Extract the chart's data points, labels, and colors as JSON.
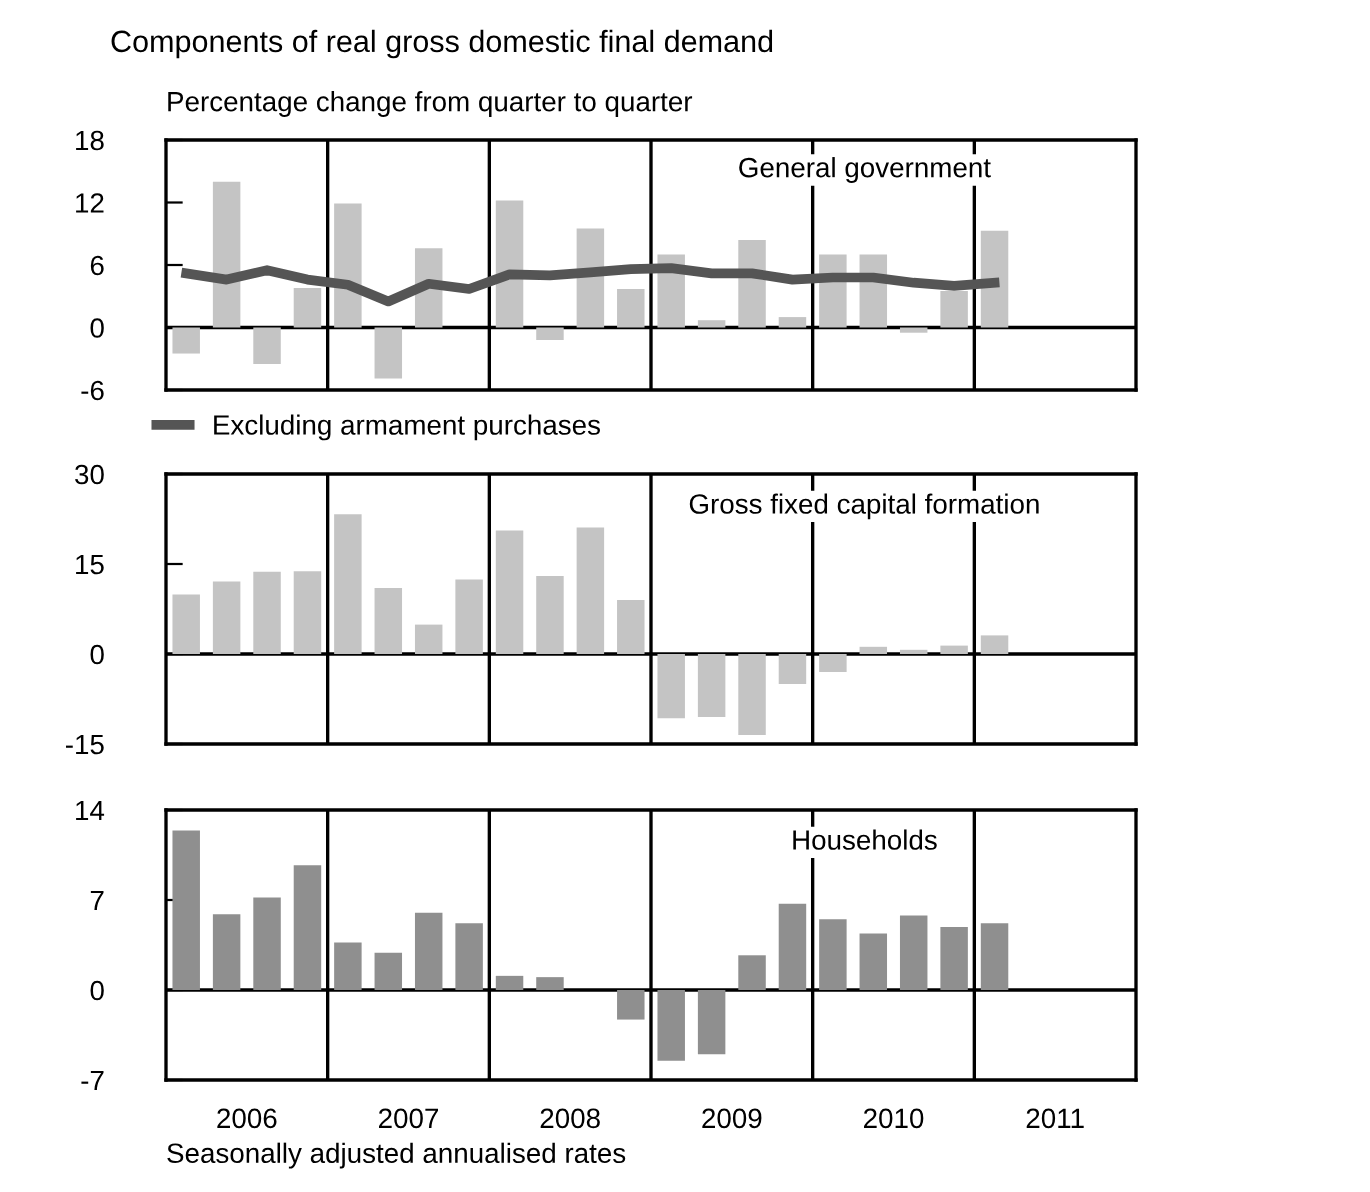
{
  "chart_data": [
    {
      "type": "bar",
      "title": "Components of real gross domestic final demand",
      "subtitle": "Percentage change from quarter to quarter",
      "annotations": [
        "General government"
      ],
      "x": [
        2006.125,
        2006.375,
        2006.625,
        2006.875,
        2007.125,
        2007.375,
        2007.625,
        2007.875,
        2008.125,
        2008.375,
        2008.625,
        2008.875,
        2009.125,
        2009.375,
        2009.625,
        2009.875,
        2010.125,
        2010.375,
        2010.625,
        2010.875,
        2011.125
      ],
      "series": [
        {
          "color": "#c4c4c4",
          "values": [
            -2.5,
            14.0,
            -3.5,
            3.8,
            11.9,
            -4.9,
            7.6,
            0,
            12.2,
            -1.2,
            9.5,
            3.7,
            7.0,
            0.7,
            8.4,
            1.0,
            7.0,
            7.0,
            -0.5,
            3.5,
            9.3
          ]
        },
        {
          "type": "line",
          "name": "Excluding armament purchases",
          "color": "#555555",
          "values": [
            5.2,
            4.6,
            5.5,
            4.6,
            4.1,
            2.5,
            4.2,
            3.7,
            5.1,
            5.0,
            5.3,
            5.6,
            5.7,
            5.2,
            5.2,
            4.6,
            4.8,
            4.8,
            4.3,
            4.0,
            4.3
          ]
        }
      ],
      "xlim": [
        2006,
        2012
      ],
      "ylim": [
        -6,
        18
      ],
      "yticks": [
        -6,
        0,
        6,
        12,
        18
      ],
      "legend": "bottom",
      "line_style": "solid",
      "marker": "none",
      "ref_lines": [
        {
          "axis": "y",
          "value": 0,
          "color": "#000000"
        },
        {
          "axis": "x",
          "value": 2007,
          "color": "#000000"
        },
        {
          "axis": "x",
          "value": 2008,
          "color": "#000000"
        },
        {
          "axis": "x",
          "value": 2009,
          "color": "#000000"
        },
        {
          "axis": "x",
          "value": 2010,
          "color": "#000000"
        },
        {
          "axis": "x",
          "value": 2011,
          "color": "#000000"
        }
      ]
    },
    {
      "type": "bar",
      "annotations": [
        "Gross fixed capital formation"
      ],
      "x": [
        2006.125,
        2006.375,
        2006.625,
        2006.875,
        2007.125,
        2007.375,
        2007.625,
        2007.875,
        2008.125,
        2008.375,
        2008.625,
        2008.875,
        2009.125,
        2009.375,
        2009.625,
        2009.875,
        2010.125,
        2010.375,
        2010.625,
        2010.875,
        2011.125
      ],
      "series": [
        {
          "color": "#c4c4c4",
          "values": [
            9.9,
            12.1,
            13.7,
            13.8,
            23.3,
            11.0,
            4.9,
            12.4,
            20.6,
            13.0,
            21.1,
            9.0,
            -10.7,
            -10.5,
            -13.5,
            -5.0,
            -3.0,
            1.2,
            0.7,
            1.4,
            3.1
          ]
        }
      ],
      "xlim": [
        2006,
        2012
      ],
      "ylim": [
        -15,
        30
      ],
      "yticks": [
        -15,
        0,
        15,
        30
      ],
      "ref_lines": [
        {
          "axis": "y",
          "value": 0,
          "color": "#000000"
        },
        {
          "axis": "x",
          "value": 2007,
          "color": "#000000"
        },
        {
          "axis": "x",
          "value": 2008,
          "color": "#000000"
        },
        {
          "axis": "x",
          "value": 2009,
          "color": "#000000"
        },
        {
          "axis": "x",
          "value": 2010,
          "color": "#000000"
        },
        {
          "axis": "x",
          "value": 2011,
          "color": "#000000"
        }
      ]
    },
    {
      "type": "bar",
      "annotations": [
        "Households",
        "Seasonally adjusted annualised rates"
      ],
      "x": [
        2006.125,
        2006.375,
        2006.625,
        2006.875,
        2007.125,
        2007.375,
        2007.625,
        2007.875,
        2008.125,
        2008.375,
        2008.625,
        2008.875,
        2009.125,
        2009.375,
        2009.625,
        2009.875,
        2010.125,
        2010.375,
        2010.625,
        2010.875,
        2011.125
      ],
      "series": [
        {
          "color": "#8f8f8f",
          "values": [
            12.4,
            5.9,
            7.2,
            9.7,
            3.7,
            2.9,
            6.0,
            5.2,
            1.1,
            1.0,
            0,
            -2.3,
            -5.5,
            -5.0,
            2.7,
            6.7,
            5.5,
            4.4,
            5.8,
            4.9,
            5.2
          ]
        }
      ],
      "xlim": [
        2006,
        2012
      ],
      "xticks": [
        {
          "value": 2006.5,
          "label": "2006"
        },
        {
          "value": 2007.5,
          "label": "2007"
        },
        {
          "value": 2008.5,
          "label": "2008"
        },
        {
          "value": 2009.5,
          "label": "2009"
        },
        {
          "value": 2010.5,
          "label": "2010"
        },
        {
          "value": 2011.5,
          "label": "2011"
        }
      ],
      "ylim": [
        -7,
        14
      ],
      "yticks": [
        -7,
        0,
        7,
        14
      ],
      "ref_lines": [
        {
          "axis": "y",
          "value": 0,
          "color": "#000000"
        },
        {
          "axis": "x",
          "value": 2007,
          "color": "#000000"
        },
        {
          "axis": "x",
          "value": 2008,
          "color": "#000000"
        },
        {
          "axis": "x",
          "value": 2009,
          "color": "#000000"
        },
        {
          "axis": "x",
          "value": 2010,
          "color": "#000000"
        },
        {
          "axis": "x",
          "value": 2011,
          "color": "#000000"
        }
      ]
    }
  ]
}
